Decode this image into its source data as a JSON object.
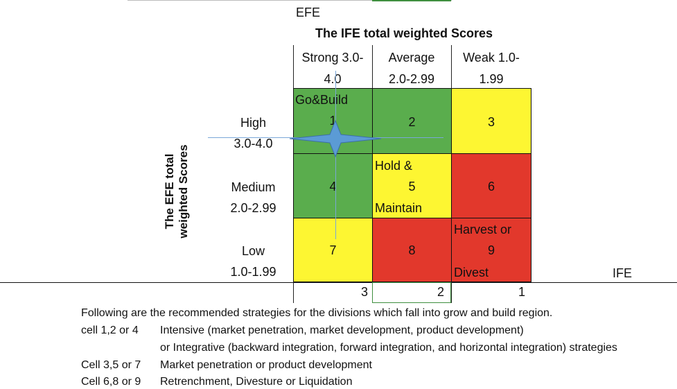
{
  "top_axis_label": "EFE",
  "column_header_title": "The IFE total weighted Scores",
  "columns": [
    {
      "line1": "Strong 3.0-",
      "line2": "4.0"
    },
    {
      "line1": "Average",
      "line2": "2.0-2.99"
    },
    {
      "line1": "Weak  1.0-",
      "line2": "1.99"
    }
  ],
  "row_axis_title": "The EFE total weighted Scores",
  "rows": [
    {
      "line1": "High",
      "line2": "3.0-4.0"
    },
    {
      "line1": "Medium",
      "line2": "2.0-2.99"
    },
    {
      "line1": "Low",
      "line2": "1.0-1.99"
    }
  ],
  "cells": [
    "1",
    "2",
    "3",
    "4",
    "5",
    "6",
    "7",
    "8",
    "9"
  ],
  "region_labels": {
    "grow_build": "Go&Build",
    "hold_line1": "Hold &",
    "hold_line2": "Maintain",
    "harvest_line1": "Harvest or",
    "harvest_line2": "Divest"
  },
  "ife_axis_label": "IFE",
  "ife_scale": [
    "3",
    "2",
    "1"
  ],
  "notes": {
    "intro": "Following are the recommended strategies for the divisions which fall into grow and build region.",
    "items": [
      {
        "cells": "cell 1,2 or 4",
        "text": "Intensive (market penetration, market development, product development)"
      },
      {
        "cells": "",
        "text": "or Integrative (backward integration, forward integration, and horizontal integration) strategies"
      },
      {
        "cells": "Cell 3,5 or 7",
        "text": "Market penetration or product development"
      },
      {
        "cells": "Cell 6,8 or 9",
        "text": "Retrenchment, Divesture or Liquidation"
      }
    ]
  },
  "colors": {
    "green": "#5aad4d",
    "yellow": "#fdf632",
    "red": "#e2382c",
    "marker": "#5b9bd5"
  }
}
